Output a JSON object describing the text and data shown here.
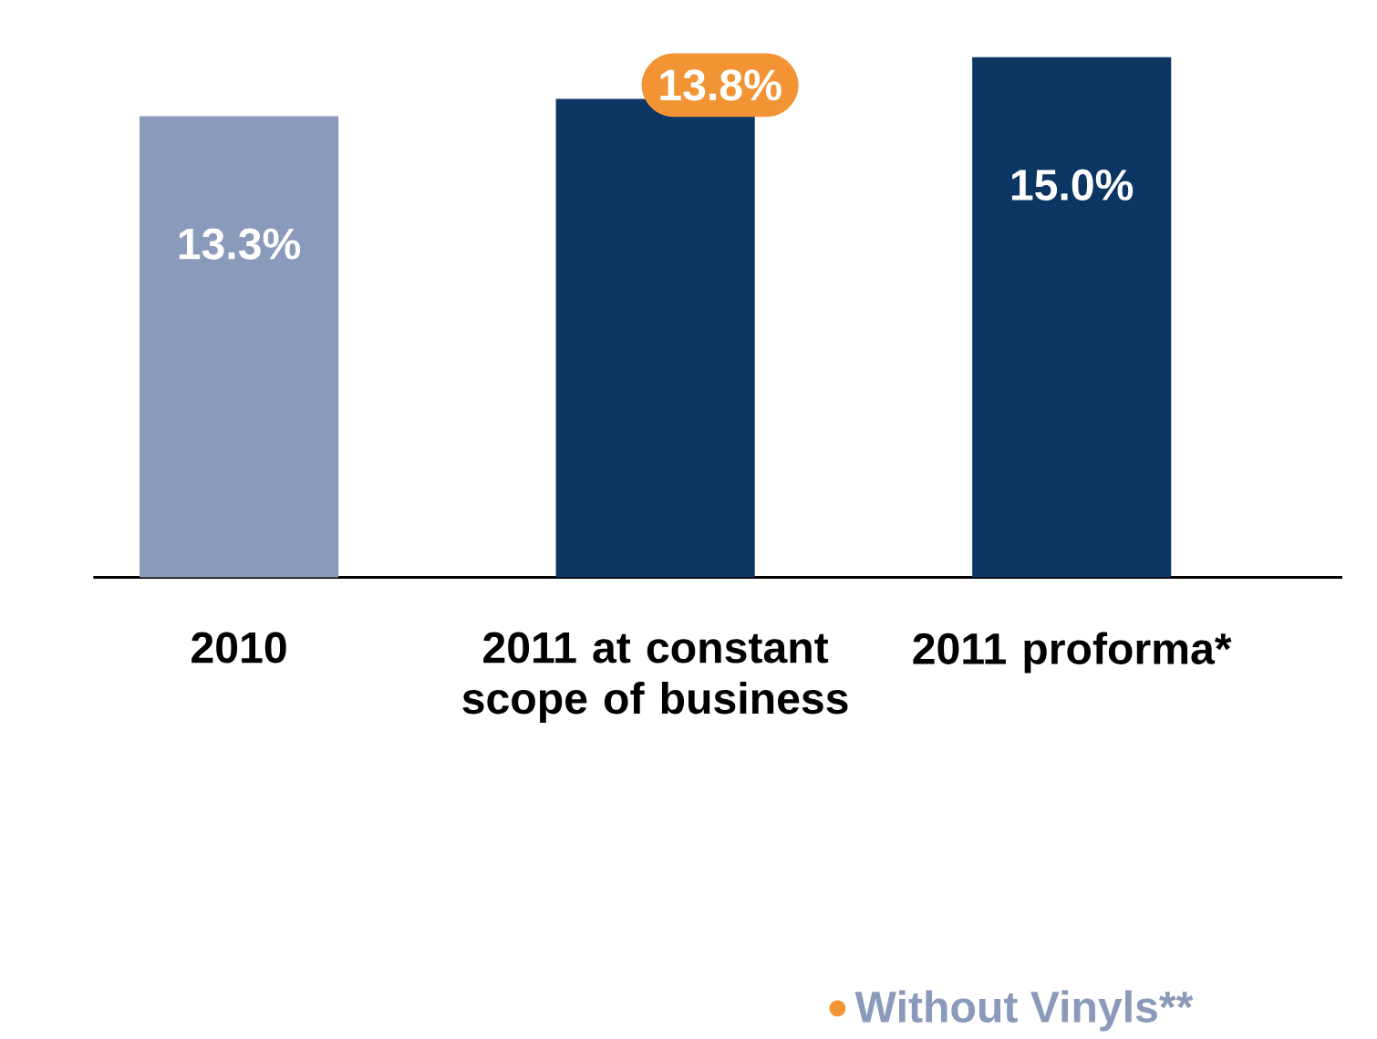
{
  "chart_data": {
    "type": "bar",
    "categories": [
      "2010",
      "2011 at constant scope of business",
      "2011 proforma*"
    ],
    "values": [
      13.3,
      13.8,
      15.0
    ],
    "value_labels": [
      "13.3%",
      "13.8%",
      "15.0%"
    ],
    "colors": [
      "#8a9aba",
      "#0b3563",
      "#0b3563"
    ],
    "annotations": [
      "Without Vinyls**"
    ]
  }
}
